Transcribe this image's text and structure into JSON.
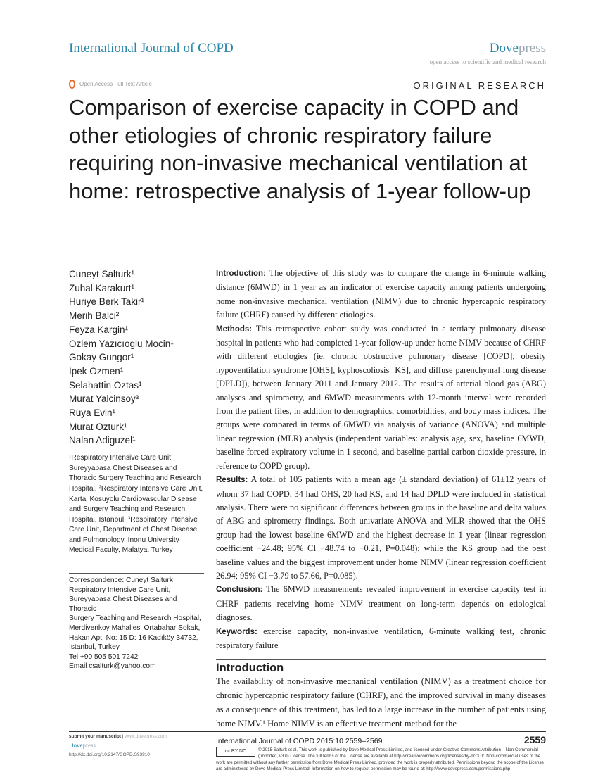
{
  "header": {
    "journal": "International Journal of COPD",
    "publisher_a": "Dove",
    "publisher_b": "press",
    "tagline": "open access to scientific and medical research",
    "open_access": "Open Access Full Text Article",
    "article_type": "ORIGINAL RESEARCH"
  },
  "title": "Comparison of exercise capacity in COPD and other etiologies of chronic respiratory failure requiring non-invasive mechanical ventilation at home: retrospective analysis of 1-year follow-up",
  "authors": [
    "Cuneyt Salturk¹",
    "Zuhal Karakurt¹",
    "Huriye Berk Takir¹",
    "Merih Balci²",
    "Feyza Kargin¹",
    "Ozlem Yazıcıoglu Mocin¹",
    "Gokay Gungor¹",
    "Ipek Ozmen¹",
    "Selahattin Oztas¹",
    "Murat Yalcinsoy³",
    "Ruya Evin¹",
    "Murat Ozturk¹",
    "Nalan Adiguzel¹"
  ],
  "affiliations": "¹Respiratory Intensive Care Unit, Sureyyapasa Chest Diseases and Thoracic Surgery Teaching and Research Hospital, ²Respiratory Intensive Care Unit, Kartal Kosuyolu Cardiovascular Disease and Surgery Teaching and Research Hospital, Istanbul, ³Respiratory Intensive Care Unit, Department of Chest Disease and Pulmonology, Inonu University Medical Faculty, Malatya, Turkey",
  "correspondence": [
    "Correspondence: Cuneyt Salturk",
    "Respiratory Intensive Care Unit,",
    "Sureyyapasa Chest Diseases and Thoracic",
    "Surgery Teaching and Research Hospital,",
    "Merdivenkoy Mahallesi Ortabahar Sokak,",
    "Hakan Apt. No: 15 D: 16 Kadıköy 34732,",
    "Istanbul, Turkey",
    "Tel +90 505 501 7242",
    "Email csalturk@yahoo.com"
  ],
  "abstract": [
    {
      "label": "Introduction:",
      "text": " The objective of this study was to compare the change in 6-minute walking distance (6MWD) in 1 year as an indicator of exercise capacity among patients undergoing home non-invasive mechanical ventilation (NIMV) due to chronic hypercapnic respiratory failure (CHRF) caused by different etiologies."
    },
    {
      "label": "Methods:",
      "text": " This retrospective cohort study was conducted in a tertiary pulmonary disease hospital in patients who had completed 1-year follow-up under home NIMV because of CHRF with different etiologies (ie, chronic obstructive pulmonary disease [COPD], obesity hypoventilation syndrome [OHS], kyphoscoliosis [KS], and diffuse parenchymal lung disease [DPLD]), between January 2011 and January 2012. The results of arterial blood gas (ABG) analyses and spirometry, and 6MWD measurements with 12-month interval were recorded from the patient files, in addition to demographics, comorbidities, and body mass indices. The groups were compared in terms of 6MWD via analysis of variance (ANOVA) and multiple linear regression (MLR) analysis (independent variables: analysis age, sex, baseline 6MWD, baseline forced expiratory volume in 1 second, and baseline partial carbon dioxide pressure, in reference to COPD group)."
    },
    {
      "label": "Results:",
      "text": " A total of 105 patients with a mean age (± standard deviation) of 61±12 years of whom 37 had COPD, 34 had OHS, 20 had KS, and 14 had DPLD were included in statistical analysis. There were no significant differences between groups in the baseline and delta values of ABG and spirometry findings. Both univariate ANOVA and MLR showed that the OHS group had the lowest baseline 6MWD and the highest decrease in 1 year (linear regression coefficient −24.48; 95% CI −48.74 to −0.21, P=0.048); while the KS group had the best baseline values and the biggest improvement under home NIMV (linear regression coefficient 26.94; 95% CI −3.79 to 57.66, P=0.085)."
    },
    {
      "label": "Conclusion:",
      "text": " The 6MWD measurements revealed improvement in exercise capacity test in CHRF patients receiving home NIMV treatment on long-term depends on etiological diagnoses."
    },
    {
      "label": "Keywords:",
      "text": " exercise capacity, non-invasive ventilation, 6-minute walking test, chronic respiratory failure"
    }
  ],
  "introduction": {
    "heading": "Introduction",
    "text": "The availability of non-invasive mechanical ventilation (NIMV) as a treatment choice for chronic hypercapnic respiratory failure (CHRF), and the improved survival in many diseases as a consequence of this treatment, has led to a large increase in the number of patients using home NIMV.¹ Home NIMV is an effective treatment method for the"
  },
  "footer": {
    "submit": "submit your manuscript",
    "submit_url": "www.dovepress.com",
    "dove_a": "Dove",
    "dove_b": "press",
    "doi": "http://dx.doi.org/10.2147/COPD.S93910",
    "citation": "International Journal of COPD 2015:10 2559–2569",
    "page": "2559",
    "cc_badge": "cc BY NC",
    "license": "© 2015 Salturk et al. This work is published by Dove Medical Press Limited, and licensed under Creative Commons Attribution – Non Commercial (unported, v3.0) License. The full terms of the License are available at http://creativecommons.org/licenses/by-nc/3.0/. Non-commercial uses of the work are permitted without any further permission from Dove Medical Press Limited, provided the work is properly attributed. Permissions beyond the scope of the License are administered by Dove Medical Press Limited. Information on how to request permission may be found at: http://www.dovepress.com/permissions.php"
  }
}
